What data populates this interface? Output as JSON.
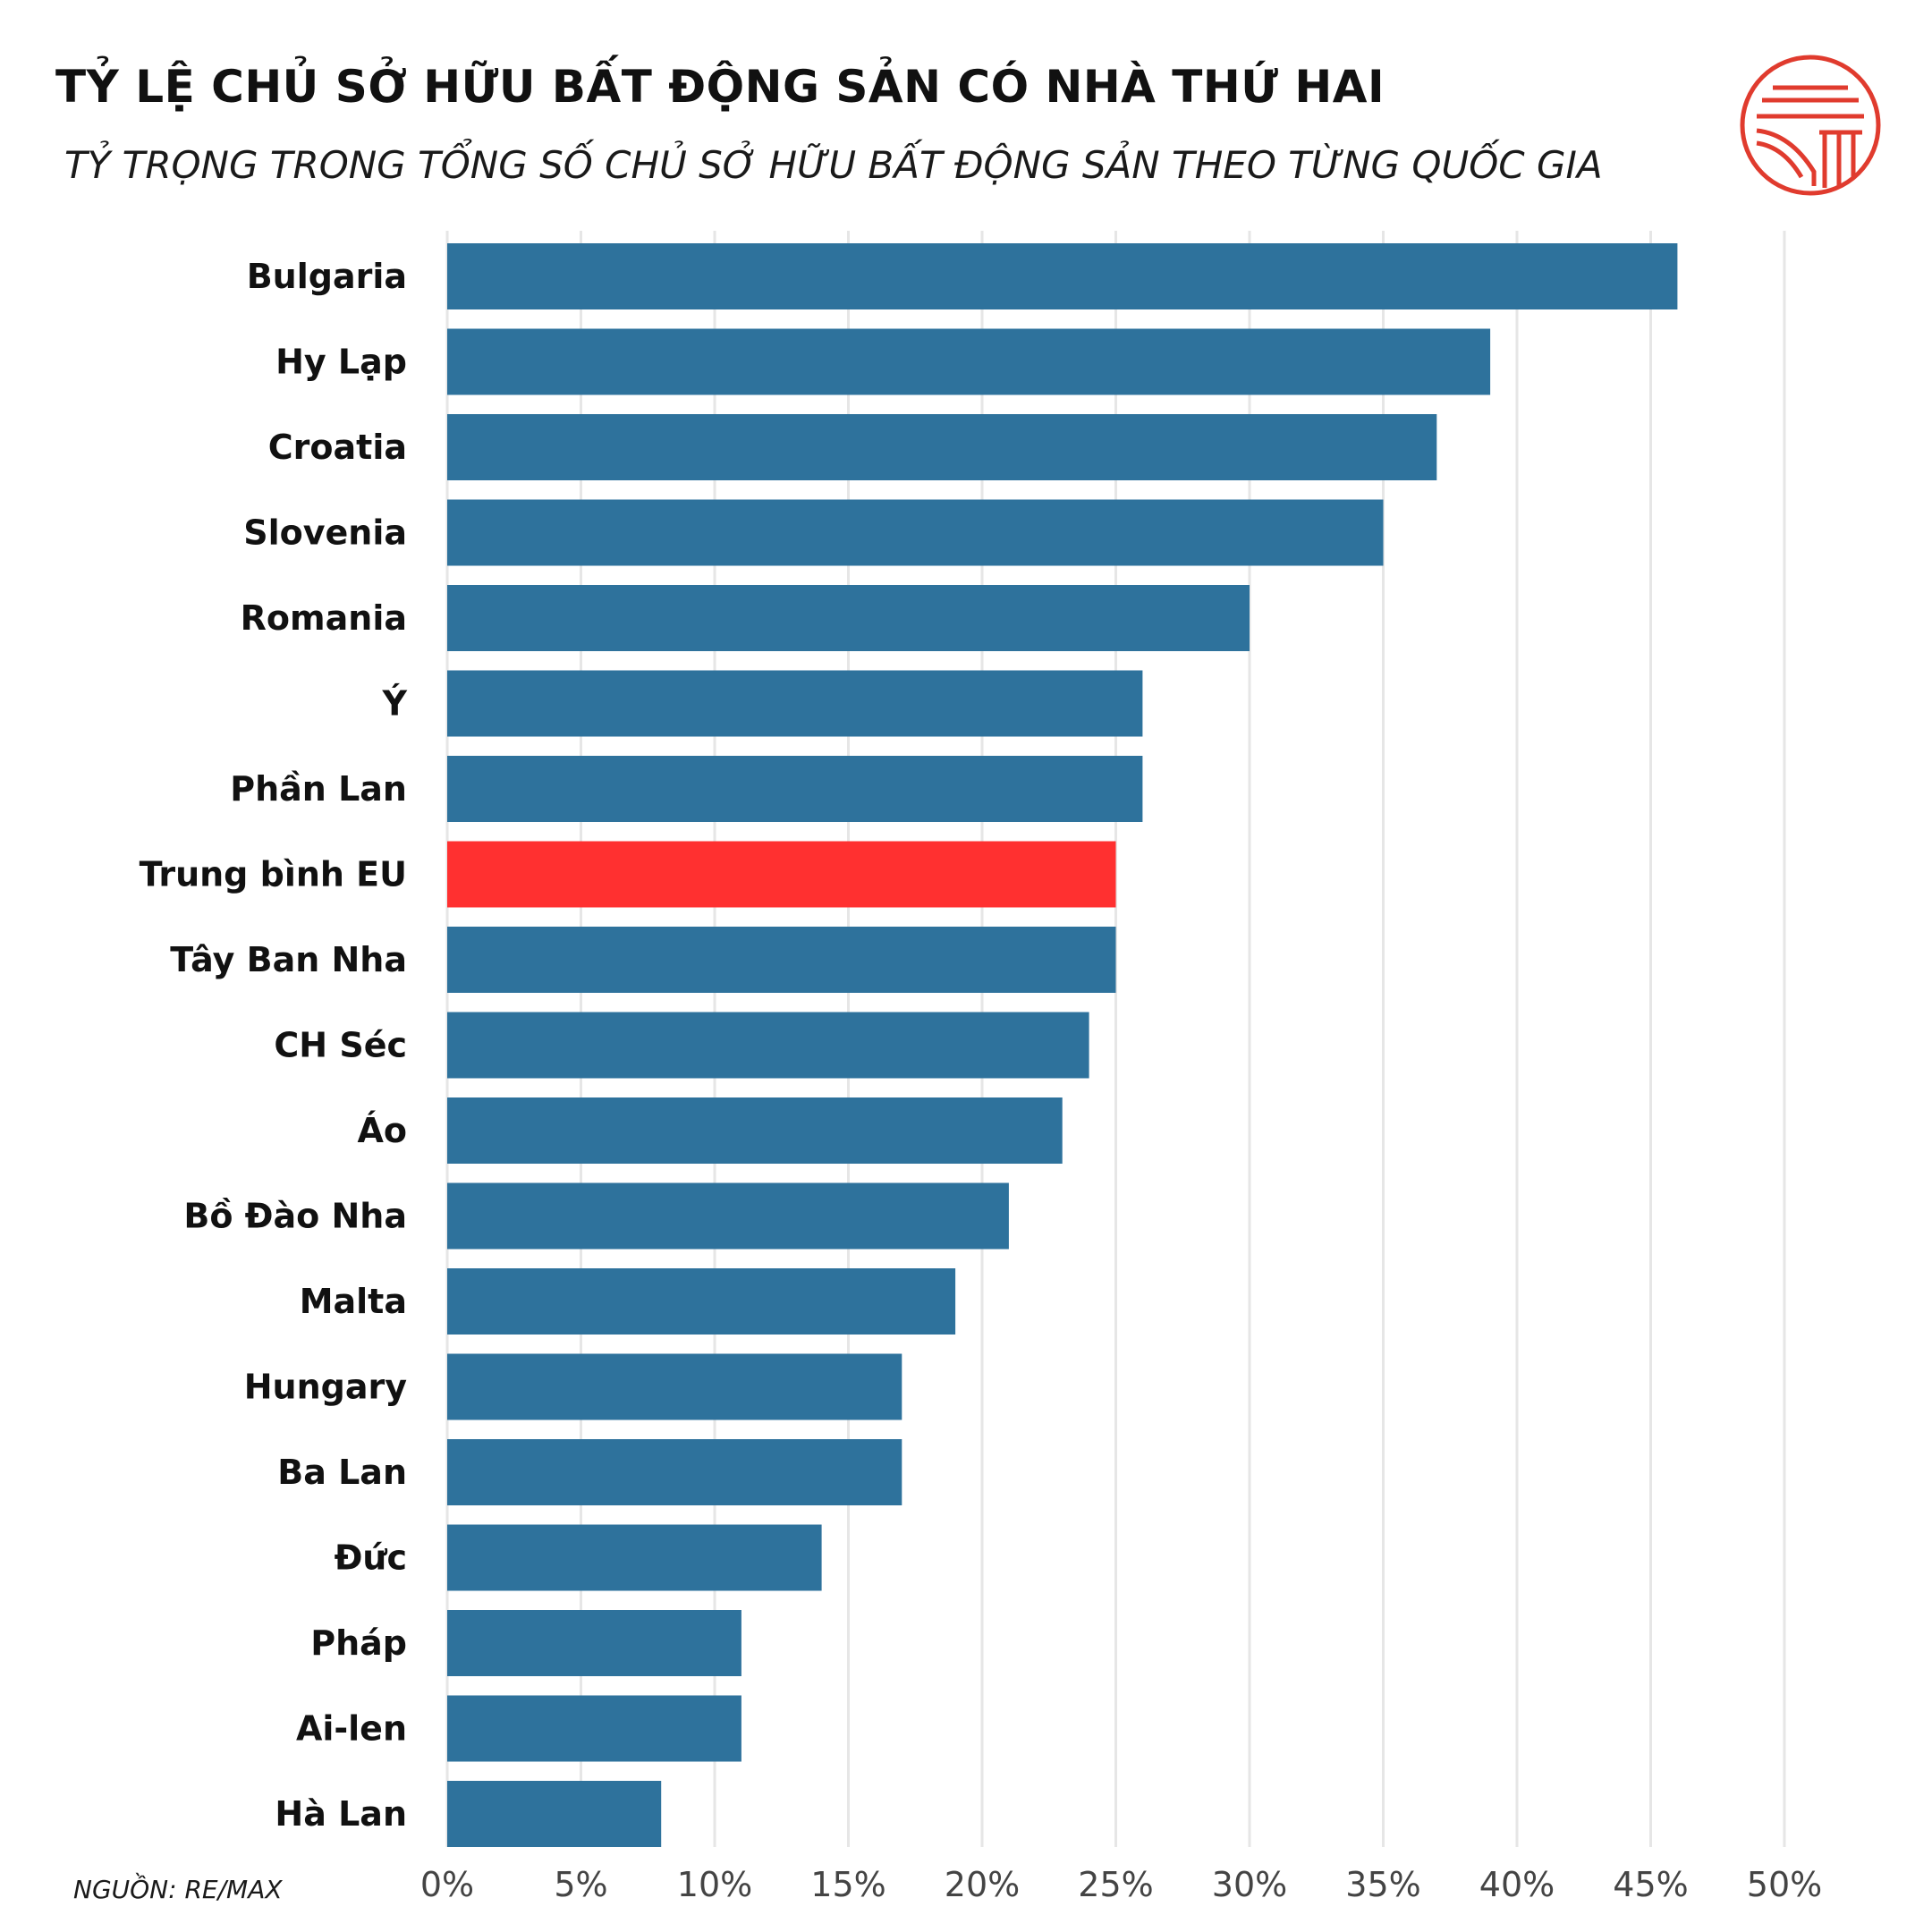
{
  "header": {
    "title": "TỶ LỆ CHỦ SỞ HỮU BẤT ĐỘNG SẢN CÓ NHÀ THỨ HAI",
    "subtitle": "TỶ TRỌNG TRONG TỔNG SỐ CHỦ SỞ HỮU BẤT ĐỘNG SẢN THEO TỪNG QUỐC GIA"
  },
  "footer": {
    "source": "NGUỒN: RE/MAX"
  },
  "logo": {
    "icon": "temple-columns-icon",
    "color": "#e03b2e"
  },
  "colors": {
    "bar": "#2e729c",
    "highlight": "#ff3030",
    "grid": "#e6e6e6",
    "label": "#111111",
    "tick": "#444444"
  },
  "chart_data": {
    "type": "bar",
    "orientation": "horizontal",
    "categories": [
      "Bulgaria",
      "Hy Lạp",
      "Croatia",
      "Slovenia",
      "Romania",
      "Ý",
      "Phần Lan",
      "Trung bình EU",
      "Tây Ban Nha",
      "CH Séc",
      "Áo",
      "Bồ Đào Nha",
      "Malta",
      "Hungary",
      "Ba Lan",
      "Đức",
      "Pháp",
      "Ai-len",
      "Hà Lan"
    ],
    "values": [
      46,
      39,
      37,
      35,
      30,
      26,
      26,
      25,
      25,
      24,
      23,
      21,
      19,
      17,
      17,
      14,
      11,
      11,
      8
    ],
    "highlight": "Trung bình EU",
    "xlim": [
      0,
      50
    ],
    "xticks": [
      0,
      5,
      10,
      15,
      20,
      25,
      30,
      35,
      40,
      45,
      50
    ],
    "xtick_labels": [
      "0%",
      "5%",
      "10%",
      "15%",
      "20%",
      "25%",
      "30%",
      "35%",
      "40%",
      "45%",
      "50%"
    ],
    "grid": true,
    "legend": "none"
  }
}
